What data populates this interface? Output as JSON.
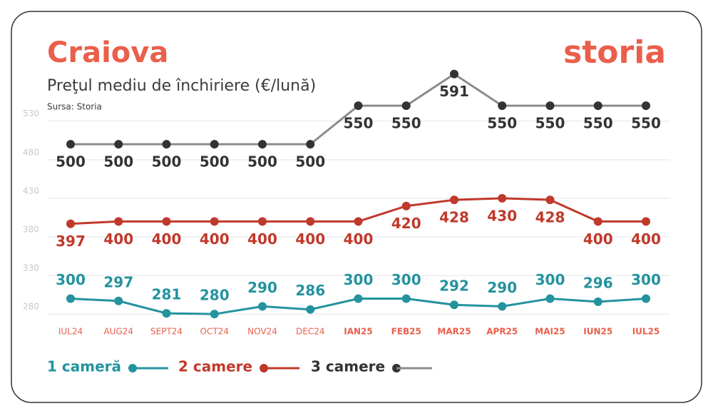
{
  "chart_data": {
    "type": "line",
    "title": "Craiova",
    "subtitle": "Preţul mediu de închiriere (€/lună)",
    "source": "Sursa: Storia",
    "logo": "storia",
    "categories": [
      "IUL24",
      "AUG24",
      "SEPT24",
      "OCT24",
      "NOV24",
      "DEC24",
      "IAN25",
      "FEB25",
      "MAR25",
      "APR25",
      "MAI25",
      "IUN25",
      "IUL25"
    ],
    "series": [
      {
        "name": "1 cameră",
        "color": "#23939e",
        "marker_color": "#23939e",
        "values": [
          300,
          297,
          281,
          280,
          290,
          286,
          300,
          300,
          292,
          290,
          300,
          296,
          300
        ]
      },
      {
        "name": "2 camere",
        "color": "#c0392b",
        "marker_color": "#c0392b",
        "values": [
          397,
          400,
          400,
          400,
          400,
          400,
          400,
          420,
          428,
          430,
          428,
          400,
          400
        ]
      },
      {
        "name": "3 camere",
        "color": "#8c8c8c",
        "marker_color": "#333333",
        "values": [
          500,
          500,
          500,
          500,
          500,
          500,
          550,
          550,
          591,
          550,
          550,
          550,
          550
        ]
      }
    ],
    "ylim": [
      270,
      600
    ],
    "yticks": [
      280,
      330,
      380,
      430,
      480,
      530
    ],
    "grid": true
  }
}
